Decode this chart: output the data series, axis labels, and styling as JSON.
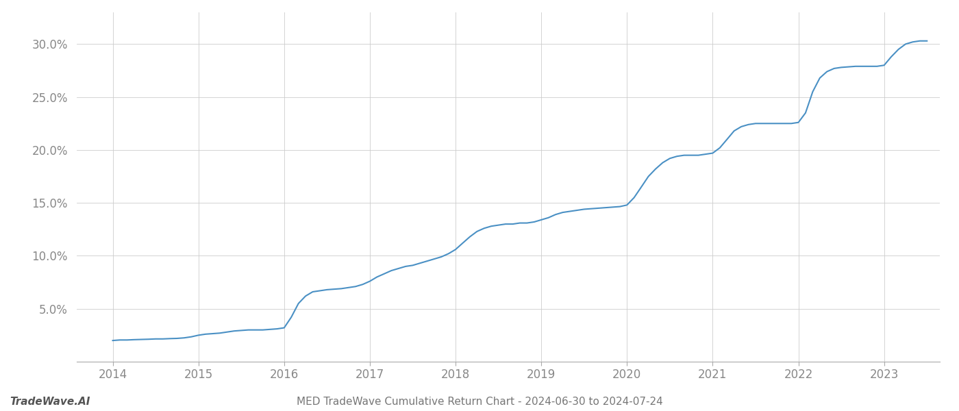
{
  "title": "MED TradeWave Cumulative Return Chart - 2024-06-30 to 2024-07-24",
  "watermark": "TradeWave.AI",
  "line_color": "#4a90c4",
  "background_color": "#ffffff",
  "grid_color": "#cccccc",
  "x_values": [
    2014.0,
    2014.083,
    2014.167,
    2014.25,
    2014.333,
    2014.417,
    2014.5,
    2014.583,
    2014.667,
    2014.75,
    2014.833,
    2014.917,
    2015.0,
    2015.083,
    2015.167,
    2015.25,
    2015.333,
    2015.417,
    2015.5,
    2015.583,
    2015.667,
    2015.75,
    2015.833,
    2015.917,
    2016.0,
    2016.083,
    2016.167,
    2016.25,
    2016.333,
    2016.417,
    2016.5,
    2016.583,
    2016.667,
    2016.75,
    2016.833,
    2016.917,
    2017.0,
    2017.083,
    2017.167,
    2017.25,
    2017.333,
    2017.417,
    2017.5,
    2017.583,
    2017.667,
    2017.75,
    2017.833,
    2017.917,
    2018.0,
    2018.083,
    2018.167,
    2018.25,
    2018.333,
    2018.417,
    2018.5,
    2018.583,
    2018.667,
    2018.75,
    2018.833,
    2018.917,
    2019.0,
    2019.083,
    2019.167,
    2019.25,
    2019.333,
    2019.417,
    2019.5,
    2019.583,
    2019.667,
    2019.75,
    2019.833,
    2019.917,
    2020.0,
    2020.083,
    2020.167,
    2020.25,
    2020.333,
    2020.417,
    2020.5,
    2020.583,
    2020.667,
    2020.75,
    2020.833,
    2020.917,
    2021.0,
    2021.083,
    2021.167,
    2021.25,
    2021.333,
    2021.417,
    2021.5,
    2021.583,
    2021.667,
    2021.75,
    2021.833,
    2021.917,
    2022.0,
    2022.083,
    2022.167,
    2022.25,
    2022.333,
    2022.417,
    2022.5,
    2022.583,
    2022.667,
    2022.75,
    2022.833,
    2022.917,
    2023.0,
    2023.083,
    2023.167,
    2023.25,
    2023.333,
    2023.417,
    2023.5
  ],
  "y_values": [
    2.0,
    2.05,
    2.05,
    2.08,
    2.1,
    2.12,
    2.15,
    2.15,
    2.18,
    2.2,
    2.25,
    2.35,
    2.5,
    2.6,
    2.65,
    2.7,
    2.8,
    2.9,
    2.95,
    3.0,
    3.0,
    3.0,
    3.05,
    3.1,
    3.2,
    4.2,
    5.5,
    6.2,
    6.6,
    6.7,
    6.8,
    6.85,
    6.9,
    7.0,
    7.1,
    7.3,
    7.6,
    8.0,
    8.3,
    8.6,
    8.8,
    9.0,
    9.1,
    9.3,
    9.5,
    9.7,
    9.9,
    10.2,
    10.6,
    11.2,
    11.8,
    12.3,
    12.6,
    12.8,
    12.9,
    13.0,
    13.0,
    13.1,
    13.1,
    13.2,
    13.4,
    13.6,
    13.9,
    14.1,
    14.2,
    14.3,
    14.4,
    14.45,
    14.5,
    14.55,
    14.6,
    14.65,
    14.8,
    15.5,
    16.5,
    17.5,
    18.2,
    18.8,
    19.2,
    19.4,
    19.5,
    19.5,
    19.5,
    19.6,
    19.7,
    20.2,
    21.0,
    21.8,
    22.2,
    22.4,
    22.5,
    22.5,
    22.5,
    22.5,
    22.5,
    22.5,
    22.6,
    23.5,
    25.5,
    26.8,
    27.4,
    27.7,
    27.8,
    27.85,
    27.9,
    27.9,
    27.9,
    27.9,
    28.0,
    28.8,
    29.5,
    30.0,
    30.2,
    30.3,
    30.3
  ],
  "ylim": [
    0,
    33
  ],
  "xlim": [
    2013.58,
    2023.65
  ],
  "yticks": [
    5.0,
    10.0,
    15.0,
    20.0,
    25.0,
    30.0
  ],
  "xticks": [
    2014,
    2015,
    2016,
    2017,
    2018,
    2019,
    2020,
    2021,
    2022,
    2023
  ],
  "line_width": 1.5,
  "title_fontsize": 11,
  "watermark_fontsize": 11,
  "tick_fontsize": 12,
  "tick_color": "#888888",
  "title_color": "#777777",
  "spine_color": "#aaaaaa"
}
